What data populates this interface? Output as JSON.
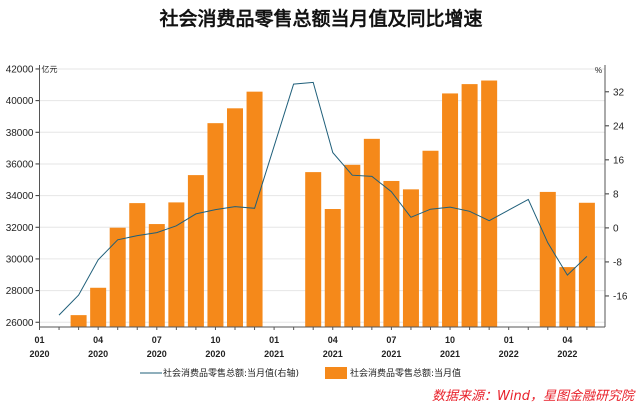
{
  "chart_data": {
    "type": "bar+line",
    "title": "社会消费品零售总额当月值及同比增速",
    "source": "数据来源：Wind，星图金融研究院",
    "left_unit": "亿元",
    "right_unit": "%",
    "ylim_left": [
      25700,
      42250
    ],
    "ylim_right": [
      -23.3,
      38.3
    ],
    "yticks_left": [
      26000,
      28000,
      30000,
      32000,
      34000,
      36000,
      38000,
      40000,
      42000
    ],
    "yticks_right": [
      -16,
      -8,
      0,
      8,
      16,
      24,
      32
    ],
    "grid": true,
    "months": [
      "2020-01",
      "2020-02",
      "2020-03",
      "2020-04",
      "2020-05",
      "2020-06",
      "2020-07",
      "2020-08",
      "2020-09",
      "2020-10",
      "2020-11",
      "2020-12",
      "2021-01",
      "2021-02",
      "2021-03",
      "2021-04",
      "2021-05",
      "2021-06",
      "2021-07",
      "2021-08",
      "2021-09",
      "2021-10",
      "2021-11",
      "2021-12",
      "2022-01",
      "2022-02",
      "2022-03",
      "2022-04",
      "2022-05"
    ],
    "xtick_labels": [
      [
        "01",
        "2020"
      ],
      [
        "04",
        "2020"
      ],
      [
        "07",
        "2020"
      ],
      [
        "10",
        "2020"
      ],
      [
        "01",
        "2021"
      ],
      [
        "04",
        "2021"
      ],
      [
        "07",
        "2021"
      ],
      [
        "10",
        "2021"
      ],
      [
        "01",
        "2022"
      ],
      [
        "04",
        "2022"
      ]
    ],
    "series": [
      {
        "name": "社会消费品零售总额:当月值",
        "type": "bar",
        "axis": "left",
        "color": "#f5891a",
        "values": [
          null,
          null,
          26450,
          28178,
          31973,
          33526,
          32203,
          33571,
          35295,
          38576,
          39514,
          40566,
          null,
          null,
          35484,
          33153,
          35945,
          37586,
          34925,
          34395,
          36833,
          40454,
          41043,
          41269,
          null,
          null,
          34233,
          29483,
          33547
        ]
      },
      {
        "name": "社会消费品零售总额:当月值(右轴)",
        "type": "line",
        "axis": "right",
        "color": "#1f5f7a",
        "values": [
          null,
          -20.5,
          -15.8,
          -7.5,
          -2.8,
          -1.8,
          -1.1,
          0.5,
          3.3,
          4.3,
          5.0,
          4.6,
          null,
          33.8,
          34.2,
          17.7,
          12.4,
          12.1,
          8.5,
          2.5,
          4.4,
          4.9,
          3.9,
          1.7,
          null,
          6.7,
          -3.5,
          -11.1,
          -6.7
        ]
      }
    ]
  }
}
